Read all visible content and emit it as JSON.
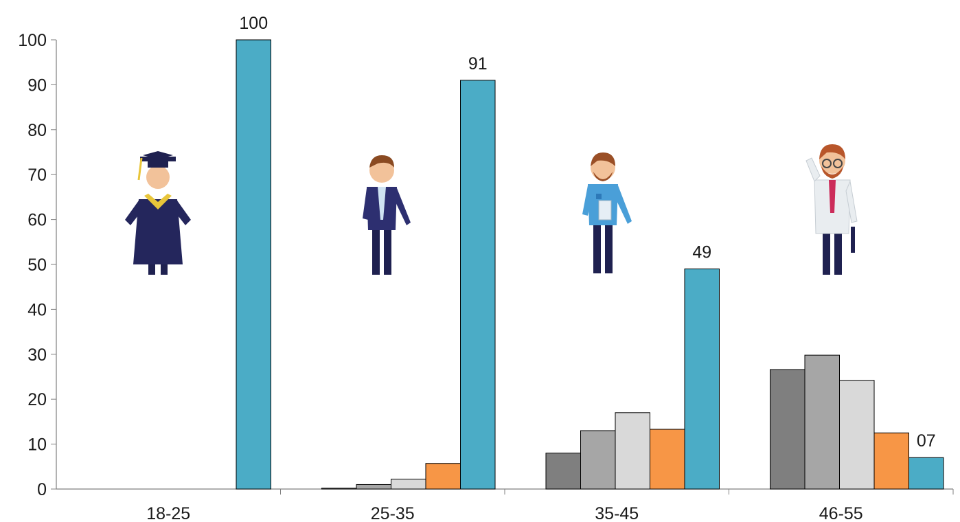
{
  "chart_data": {
    "type": "bar",
    "categories": [
      "18-25",
      "25-35",
      "35-45",
      "46-55"
    ],
    "ylim": [
      0,
      100
    ],
    "yticks": [
      0,
      10,
      20,
      30,
      40,
      50,
      60,
      70,
      80,
      90,
      100
    ],
    "series": [
      {
        "color": "#7f7f7f",
        "values": [
          0,
          0.2,
          8,
          26.6
        ]
      },
      {
        "color": "#a6a6a6",
        "values": [
          0,
          1,
          13,
          29.8
        ]
      },
      {
        "color": "#d9d9d9",
        "values": [
          0,
          2.2,
          17,
          24.2
        ]
      },
      {
        "color": "#f79646",
        "values": [
          0,
          5.7,
          13.3,
          12.5
        ]
      },
      {
        "color": "#4bacc6",
        "values": [
          100,
          91,
          49,
          7
        ]
      }
    ],
    "data_labels": [
      "100",
      "91",
      "49",
      "07"
    ],
    "illustrations": [
      "graduate-figure",
      "young-professional-figure",
      "casual-worker-figure",
      "senior-professional-figure"
    ]
  }
}
